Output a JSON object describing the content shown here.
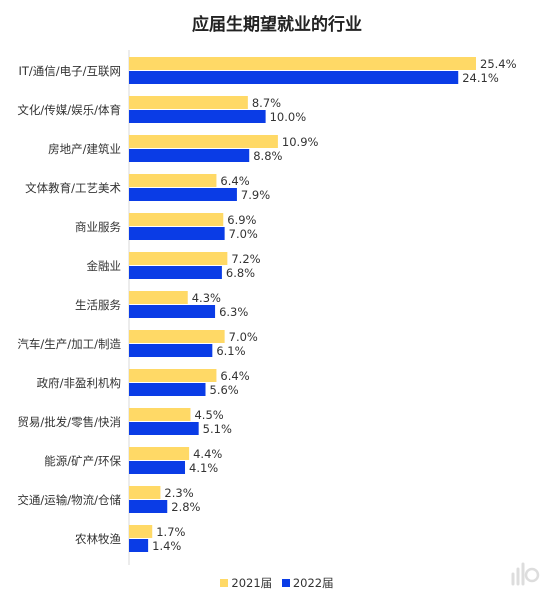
{
  "chart_data": {
    "type": "bar",
    "orientation": "horizontal",
    "title": "应届生期望就业的行业",
    "categories": [
      "IT/通信/电子/互联网",
      "文化/传媒/娱乐/体育",
      "房地产/建筑业",
      "文体教育/工艺美术",
      "商业服务",
      "金融业",
      "生活服务",
      "汽车/生产/加工/制造",
      "政府/非盈利机构",
      "贸易/批发/零售/快消",
      "能源/矿产/环保",
      "交通/运输/物流/仓储",
      "农林牧渔"
    ],
    "series": [
      {
        "name": "2021届",
        "color": "#FFD966",
        "values": [
          25.4,
          8.7,
          10.9,
          6.4,
          6.9,
          7.2,
          4.3,
          7.0,
          6.4,
          4.5,
          4.4,
          2.3,
          1.7
        ]
      },
      {
        "name": "2022届",
        "color": "#0A3CE6",
        "values": [
          24.1,
          10.0,
          8.8,
          7.9,
          7.0,
          6.8,
          6.3,
          6.1,
          5.6,
          5.1,
          4.1,
          2.8,
          1.4
        ]
      }
    ],
    "value_suffix": "%",
    "xlim": [
      0,
      26.5
    ],
    "legend": "bottom-center",
    "grid": false
  }
}
